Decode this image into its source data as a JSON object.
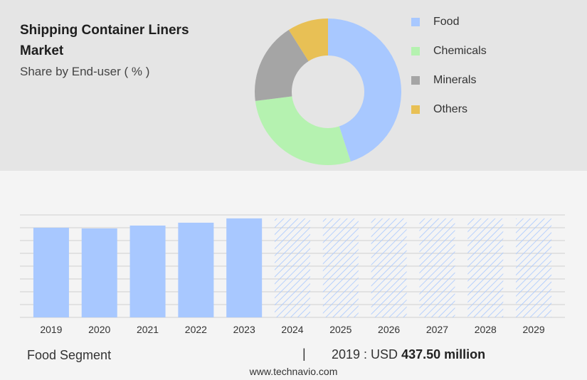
{
  "title": "Shipping Container Liners Market",
  "subtitle": "Share by End-user ( % )",
  "chart_data": [
    {
      "type": "pie",
      "variant": "donut",
      "categories": [
        "Food",
        "Chemicals",
        "Minerals",
        "Others"
      ],
      "values": [
        45,
        28,
        18,
        9
      ],
      "colors": [
        "#a8c8ff",
        "#b5f2b0",
        "#a5a5a5",
        "#e8c055"
      ],
      "legend_position": "right"
    },
    {
      "type": "bar",
      "categories": [
        "2019",
        "2020",
        "2021",
        "2022",
        "2023",
        "2024",
        "2025",
        "2026",
        "2027",
        "2028",
        "2029"
      ],
      "values": [
        437.5,
        434,
        448,
        462,
        483,
        483,
        483,
        483,
        483,
        483,
        483
      ],
      "forecast_from": "2024",
      "ylim": [
        0,
        500
      ],
      "grid": true,
      "bar_color": "#a8c8ff",
      "forecast_hatch_color": "#a8c8ff"
    }
  ],
  "footer": {
    "segment_label": "Food Segment",
    "separator": "|",
    "value_prefix": "2019 : USD",
    "value_bold": "437.50 million"
  },
  "source": "www.technavio.com"
}
